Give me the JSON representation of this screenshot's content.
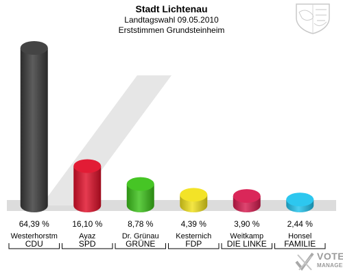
{
  "header": {
    "title": "Stadt Lichtenau",
    "subtitle1": "Landtagswahl 09.05.2010",
    "subtitle2": "Erststimmen Grundsteinheim"
  },
  "branding": {
    "vote_label": "VOTE",
    "manager_label": "MANAGER"
  },
  "chart_data": {
    "type": "bar",
    "title": "Stadt Lichtenau",
    "subtitle": "Landtagswahl 09.05.2010 — Erststimmen Grundsteinheim",
    "xlabel": "",
    "ylabel": "",
    "ylim": [
      0,
      65
    ],
    "grid": false,
    "categories": [
      "CDU",
      "SPD",
      "GRÜNE",
      "FDP",
      "DIE LINKE",
      "FAMILIE"
    ],
    "candidates": [
      "Westerhorstm",
      "Ayaz",
      "Dr. Grünau",
      "Kesternich",
      "Weitkamp",
      "Honsel"
    ],
    "values": [
      64.39,
      16.1,
      8.78,
      4.39,
      3.9,
      2.44
    ],
    "value_labels": [
      "64,39 %",
      "16,10 %",
      "8,78 %",
      "4,39 %",
      "3,90 %",
      "2,44 %"
    ],
    "colors": [
      "#3a3a3a",
      "#e0102a",
      "#3cc21a",
      "#f2e21c",
      "#d81c50",
      "#22c4ee"
    ]
  }
}
